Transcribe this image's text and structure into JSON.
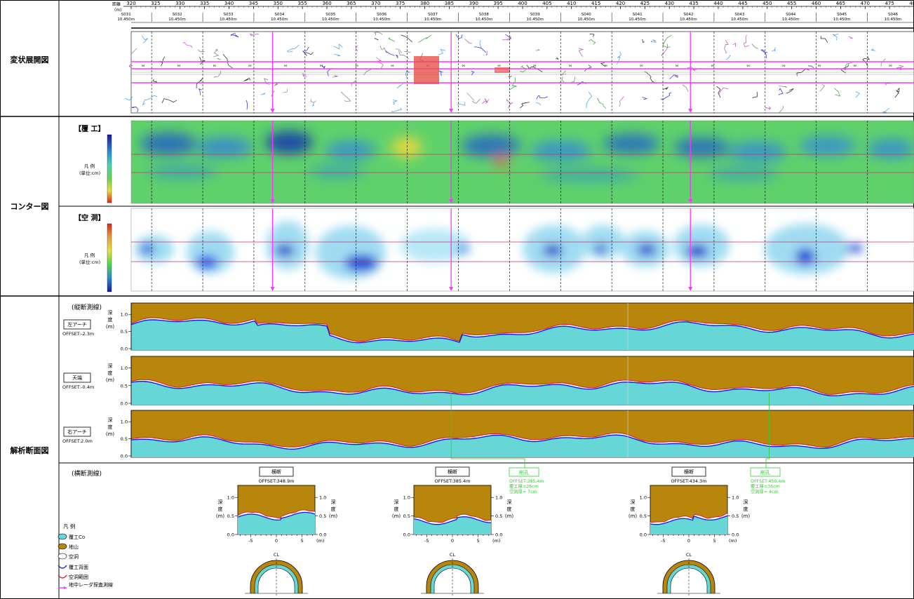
{
  "sections": {
    "deformation": "変状展開図",
    "contour": "コンター図",
    "analysis": "解析断面図"
  },
  "distance_axis": {
    "label": "距離",
    "unit": "(m)",
    "ticks": [
      "320",
      "325",
      "330",
      "335",
      "340",
      "345",
      "350",
      "355",
      "360",
      "365",
      "370",
      "375",
      "380",
      "385",
      "390",
      "395",
      "400",
      "405",
      "410",
      "415",
      "420",
      "425",
      "430",
      "435",
      "440",
      "445",
      "450",
      "455",
      "460",
      "465",
      "470",
      "475",
      "480"
    ]
  },
  "spans": {
    "ids": [
      "S031",
      "S032",
      "S033",
      "S034",
      "S035",
      "S036",
      "S037",
      "S038",
      "S039",
      "S040",
      "S041",
      "S042",
      "S043",
      "S044",
      "S045",
      "S046"
    ],
    "length": "10.450m"
  },
  "contour": {
    "lining_title": "【覆 工】",
    "void_title": "【空 洞】",
    "legend_label": "凡 例",
    "legend_unit": "(単位:cm)"
  },
  "longitudinal": {
    "title": "(縦断測線)",
    "depth_label": [
      "深",
      "度",
      "(m)"
    ],
    "y_ticks": [
      "1.0",
      "0.5",
      "0.0"
    ],
    "lines": [
      {
        "name": "左アーチ",
        "offset": "OFFSET:-2.3m"
      },
      {
        "name": "天端",
        "offset": "OFFSET:-0.4m"
      },
      {
        "name": "右アーチ",
        "offset": "OFFSET:2.0m"
      }
    ]
  },
  "transverse": {
    "title": "(横断測線)",
    "sections": [
      {
        "name": "横断",
        "offset": "OFFSET:348.9m"
      },
      {
        "name": "横断",
        "offset": "OFFSET:385.4m"
      },
      {
        "name": "横断",
        "offset": "OFFSET:434.3m"
      }
    ],
    "x_ticks": [
      "-5",
      "0",
      "5"
    ],
    "x_unit": "(m)",
    "cl": "CL"
  },
  "boreholes": [
    {
      "title": "削孔",
      "lines": [
        "OFFSET:385.4m",
        "覆工厚=26cm",
        "空洞厚= 7cm"
      ]
    },
    {
      "title": "削孔",
      "lines": [
        "OFFSET:450.4m",
        "覆工厚=36cm",
        "空洞厚= 4cm"
      ]
    }
  ],
  "legend": {
    "title": "凡 例",
    "items": [
      "覆工Co",
      "地山",
      "空洞",
      "覆工背面",
      "空洞範囲",
      "地中レーダ探査測線"
    ]
  },
  "colors": {
    "lining": "#66d6d6",
    "ground": "#b8860b",
    "void": "#ffffff",
    "lining_back": "#1a1adc",
    "void_range": "#e8141e",
    "radar_line": "#ff33ff",
    "borehole": "#33cc33"
  }
}
